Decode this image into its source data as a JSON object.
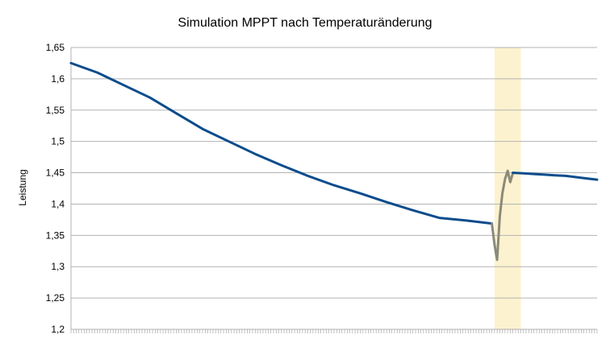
{
  "chart_data": {
    "type": "line",
    "title": "Simulation MPPT nach Temperaturänderung",
    "xlabel": "",
    "ylabel": "Leistung",
    "ylim": [
      1.2,
      1.65
    ],
    "yticks": [
      "1,2",
      "1,25",
      "1,3",
      "1,35",
      "1,4",
      "1,45",
      "1,5",
      "1,55",
      "1,6",
      "1,65"
    ],
    "grid": true,
    "x_tick_labels_shown": false,
    "highlight_band": {
      "x_start": 161,
      "x_end": 171,
      "color": "#fdf2cf"
    },
    "colors": {
      "primary": "#0b4c8c",
      "transition": "#8a8a7a",
      "grid": "#b3b3b3"
    },
    "series": [
      {
        "segment": "before",
        "x": [
          0,
          10,
          20,
          30,
          40,
          50,
          60,
          70,
          80,
          90,
          100,
          110,
          120,
          130,
          140,
          150,
          160
        ],
        "values": [
          1.625,
          1.61,
          1.59,
          1.57,
          1.545,
          1.52,
          1.5,
          1.48,
          1.462,
          1.445,
          1.43,
          1.417,
          1.403,
          1.39,
          1.378,
          1.374,
          1.369
        ]
      },
      {
        "segment": "transition",
        "x": [
          160,
          161,
          162,
          163,
          164,
          165,
          166,
          167,
          168
        ],
        "values": [
          1.369,
          1.335,
          1.311,
          1.38,
          1.417,
          1.44,
          1.453,
          1.435,
          1.45
        ]
      },
      {
        "segment": "after",
        "x": [
          168,
          172,
          176,
          180,
          184,
          188,
          192,
          196,
          200
        ],
        "values": [
          1.45,
          1.449,
          1.448,
          1.447,
          1.446,
          1.445,
          1.443,
          1.441,
          1.439
        ]
      }
    ]
  }
}
